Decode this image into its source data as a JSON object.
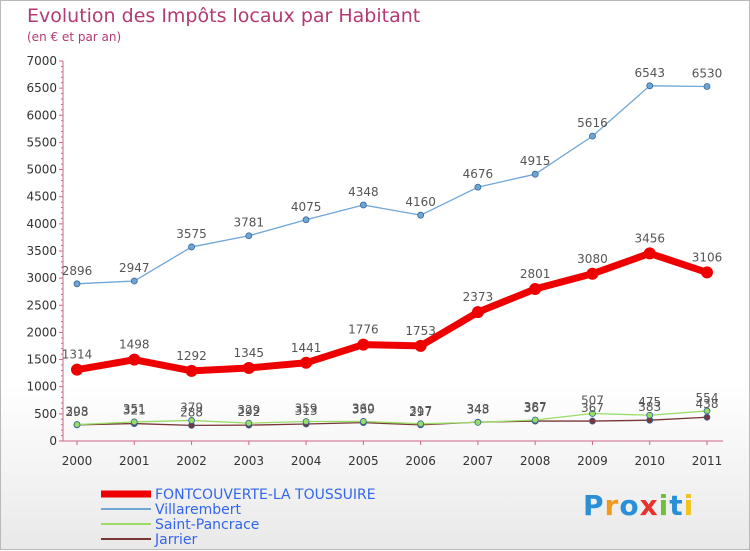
{
  "chart_data": {
    "type": "line",
    "title": "Evolution des Impôts locaux par Habitant",
    "subtitle": "(en € et par an)",
    "xlabel": "",
    "ylabel": "",
    "ylim": [
      0,
      7000
    ],
    "yticks": [
      0,
      500,
      1000,
      1500,
      2000,
      2500,
      3000,
      3500,
      4000,
      4500,
      5000,
      5500,
      6000,
      6500,
      7000
    ],
    "categories": [
      "2000",
      "2001",
      "2002",
      "2003",
      "2004",
      "2005",
      "2006",
      "2007",
      "2008",
      "2009",
      "2010",
      "2011"
    ],
    "grid": false,
    "legend_position": "bottom-left",
    "series": [
      {
        "name": "FONTCOUVERTE-LA TOUSSUIRE",
        "color": "#ee0000",
        "thick": true,
        "labels_shown": true,
        "values": [
          1314,
          1498,
          1292,
          1345,
          1441,
          1776,
          1753,
          2373,
          2801,
          3080,
          3456,
          3106
        ]
      },
      {
        "name": "Villarembert",
        "color": "#6fa6d6",
        "thick": false,
        "labels_shown": true,
        "values": [
          2896,
          2947,
          3575,
          3781,
          4075,
          4348,
          4160,
          4676,
          4915,
          5616,
          6543,
          6530
        ]
      },
      {
        "name": "Saint-Pancrace",
        "color": "#99dd66",
        "thick": false,
        "labels_shown": true,
        "values": [
          303,
          351,
          379,
          329,
          359,
          360,
          317,
          343,
          387,
          507,
          475,
          554
        ]
      },
      {
        "name": "Jarrier",
        "color": "#7a3535",
        "thick": false,
        "labels_shown": true,
        "values": [
          298,
          321,
          288,
          292,
          313,
          339,
          297,
          348,
          367,
          367,
          383,
          438
        ]
      }
    ]
  },
  "logo_text": "Proxiti"
}
